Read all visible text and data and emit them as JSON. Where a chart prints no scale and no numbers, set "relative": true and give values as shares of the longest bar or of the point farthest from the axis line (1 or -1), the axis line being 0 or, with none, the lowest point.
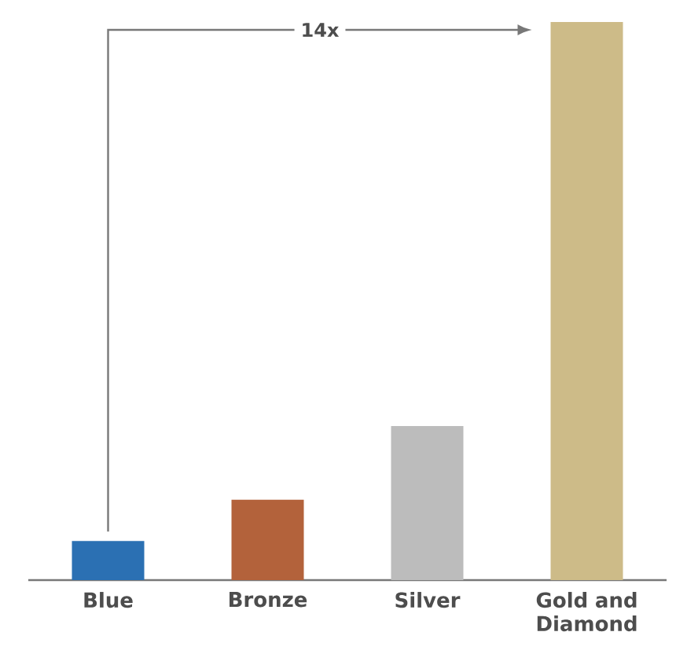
{
  "chart_data": {
    "type": "bar",
    "relative": true,
    "categories": [
      "Blue",
      "Bronze",
      "Silver",
      "Gold and Diamond"
    ],
    "values": [
      0.07,
      0.144,
      0.276,
      1
    ],
    "colors": [
      "#2b70b3",
      "#b3623b",
      "#bcbcbc",
      "#cdbb88"
    ],
    "annotations": [
      "14x"
    ]
  }
}
